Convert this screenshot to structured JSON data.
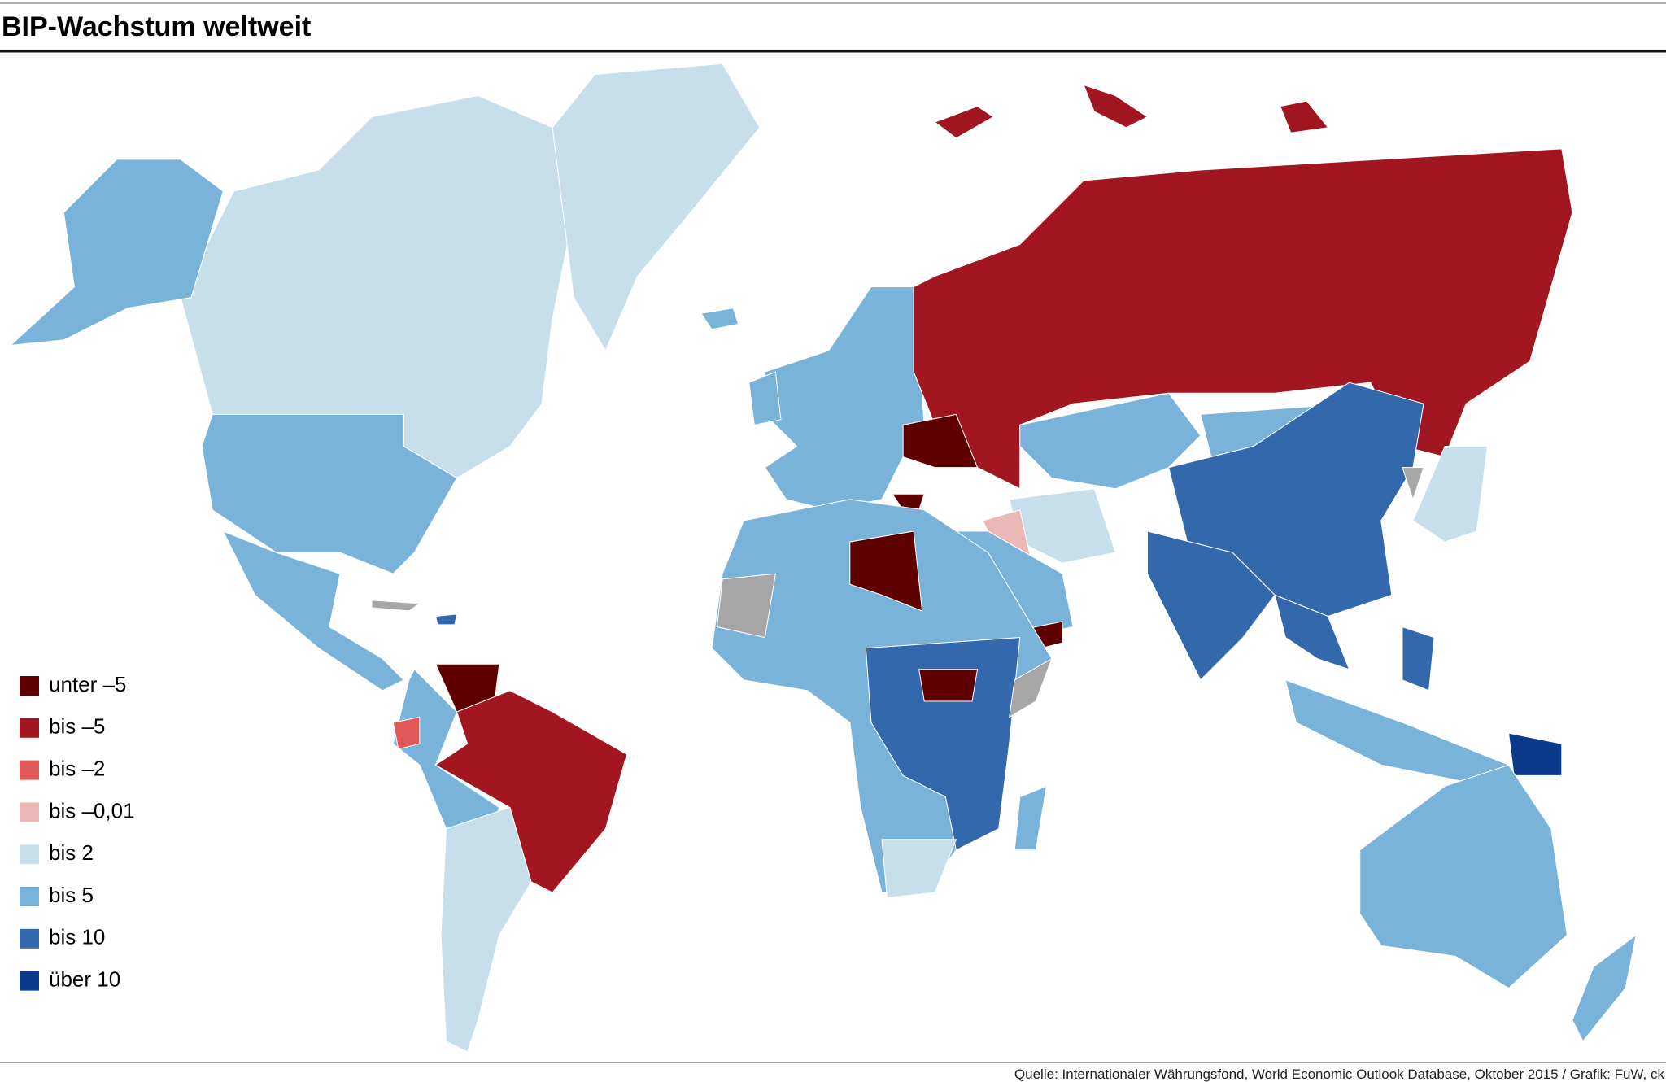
{
  "title": "BIP-Wachstum weltweit",
  "legend": [
    {
      "label": "unter –5",
      "color": "#5e0000"
    },
    {
      "label": "bis –5",
      "color": "#a11620"
    },
    {
      "label": "bis –2",
      "color": "#e05858"
    },
    {
      "label": "bis –0,01",
      "color": "#ebb8b6"
    },
    {
      "label": "bis 2",
      "color": "#c6dfeb"
    },
    {
      "label": "bis 5",
      "color": "#79b3d9"
    },
    {
      "label": "bis 10",
      "color": "#3468ad"
    },
    {
      "label": "über 10",
      "color": "#0b3a8a"
    }
  ],
  "source": "Quelle: Internationaler Währungsfond, World Economic Outlook Database, Oktober 2015 / Grafik: FuW, ck"
}
